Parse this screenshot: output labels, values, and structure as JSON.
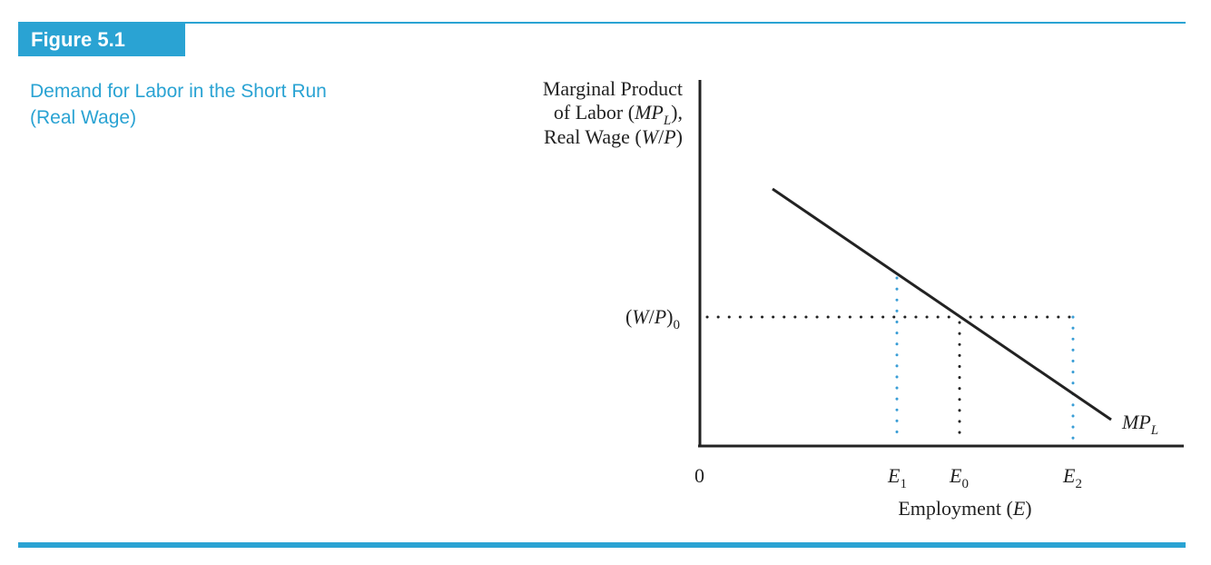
{
  "figure": {
    "label": "Figure 5.1",
    "caption_line1": "Demand for Labor in the Short Run",
    "caption_line2": "(Real Wage)"
  },
  "y_axis_label": {
    "line1": "Marginal Product",
    "line2_a": "of Labor (",
    "line2_b": "MP",
    "line2_sub": "L",
    "line2_c": "),",
    "line3_a": "Real Wage (",
    "line3_b": "W",
    "line3_c": "/",
    "line3_d": "P",
    "line3_e": ")"
  },
  "wage_level": {
    "open": "(",
    "W": "W",
    "slash": "/",
    "P": "P",
    "close": ")",
    "sub": "0"
  },
  "x_axis": {
    "origin": "0",
    "label_a": "Employment (",
    "label_b": "E",
    "label_c": ")",
    "ticks": [
      {
        "letter": "E",
        "sub": "1"
      },
      {
        "letter": "E",
        "sub": "0"
      },
      {
        "letter": "E",
        "sub": "2"
      }
    ]
  },
  "curve_label": {
    "main": "MP",
    "sub": "L"
  },
  "colors": {
    "accent": "#2aa3d3",
    "ink": "#222222"
  }
}
